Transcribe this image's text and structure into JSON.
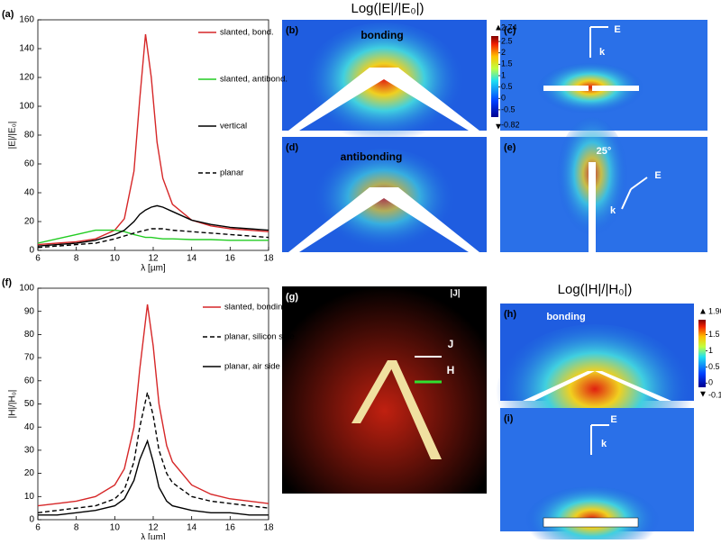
{
  "chart_data": [
    {
      "type": "line",
      "panel_label": "(a)",
      "xlabel": "λ [µm]",
      "ylabel": "|E|/|E₀|",
      "xlim": [
        6,
        18
      ],
      "ylim": [
        0,
        160
      ],
      "xticks": [
        6,
        8,
        10,
        12,
        14,
        16,
        18
      ],
      "yticks": [
        0,
        20,
        40,
        60,
        80,
        100,
        120,
        140,
        160
      ],
      "x": [
        6,
        7,
        8,
        9,
        10,
        10.5,
        11,
        11.3,
        11.6,
        11.9,
        12.2,
        12.5,
        13,
        14,
        15,
        16,
        17,
        18
      ],
      "series": [
        {
          "name": "slanted, bond.",
          "color": "#d62728",
          "dash": false,
          "values": [
            4,
            5,
            6,
            8,
            14,
            22,
            55,
            105,
            150,
            120,
            75,
            50,
            32,
            21,
            17,
            15,
            14,
            13
          ]
        },
        {
          "name": "slanted, antibond.",
          "color": "#22cc22",
          "dash": false,
          "values": [
            5,
            8,
            11,
            14,
            14,
            13,
            11,
            10,
            9,
            9,
            8.5,
            8,
            8,
            7.5,
            7.5,
            7,
            7,
            7
          ]
        },
        {
          "name": "vertical",
          "color": "#000000",
          "dash": false,
          "values": [
            3,
            4,
            5,
            7,
            11,
            14,
            20,
            25,
            28,
            30,
            31,
            30,
            27,
            21,
            18,
            16,
            15,
            14
          ]
        },
        {
          "name": "planar",
          "color": "#000000",
          "dash": true,
          "values": [
            2,
            3,
            4,
            5,
            8,
            10,
            12,
            13,
            14,
            15,
            15,
            15,
            14,
            13,
            12,
            11,
            10,
            9
          ]
        }
      ]
    },
    {
      "type": "line",
      "panel_label": "(f)",
      "xlabel": "λ [µm]",
      "ylabel": "|H|/|H₀|",
      "xlim": [
        6,
        18
      ],
      "ylim": [
        0,
        100
      ],
      "xticks": [
        6,
        8,
        10,
        12,
        14,
        16,
        18
      ],
      "yticks": [
        0,
        10,
        20,
        30,
        40,
        50,
        60,
        70,
        80,
        90,
        100
      ],
      "x": [
        6,
        7,
        8,
        9,
        10,
        10.5,
        11,
        11.3,
        11.7,
        12,
        12.3,
        12.7,
        13,
        14,
        15,
        16,
        17,
        18
      ],
      "series": [
        {
          "name": "slanted, bonding",
          "color": "#d62728",
          "dash": false,
          "values": [
            6,
            7,
            8,
            10,
            15,
            22,
            40,
            65,
            93,
            75,
            50,
            32,
            25,
            15,
            11,
            9,
            8,
            7
          ]
        },
        {
          "name": "planar, silicon side",
          "color": "#000000",
          "dash": true,
          "values": [
            3,
            4,
            5,
            6,
            9,
            13,
            25,
            40,
            55,
            45,
            30,
            20,
            16,
            10,
            8,
            7,
            6,
            5
          ]
        },
        {
          "name": "planar, air side",
          "color": "#000000",
          "dash": false,
          "values": [
            2,
            2,
            3,
            4,
            6,
            9,
            17,
            26,
            34,
            25,
            14,
            8,
            6,
            4,
            3,
            3,
            2,
            2
          ]
        }
      ]
    }
  ],
  "field_maps": {
    "e_title": "Log(|E|/|E₀|)",
    "h_title": "Log(|H|/|H₀|)",
    "e_colorbar": {
      "lim": [
        -0.82,
        2.74
      ],
      "ticks": [
        2.5,
        2,
        1.5,
        1,
        0.5,
        0,
        -0.5
      ]
    },
    "h_colorbar": {
      "lim": [
        -0.13,
        1.96
      ],
      "ticks": [
        1.5,
        1,
        0.5,
        0
      ]
    },
    "panels": [
      {
        "label": "(b)",
        "annotations": [
          "bonding"
        ]
      },
      {
        "label": "(c)",
        "annotations": [
          "E",
          "k"
        ]
      },
      {
        "label": "(d)",
        "annotations": [
          "antibonding"
        ]
      },
      {
        "label": "(e)",
        "annotations": [
          "25°",
          "E",
          "k"
        ]
      },
      {
        "label": "(g)",
        "annotations": [
          "|J|",
          "J",
          "H"
        ]
      },
      {
        "label": "(h)",
        "annotations": [
          "bonding"
        ]
      },
      {
        "label": "(i)",
        "annotations": [
          "E",
          "k"
        ]
      }
    ]
  }
}
